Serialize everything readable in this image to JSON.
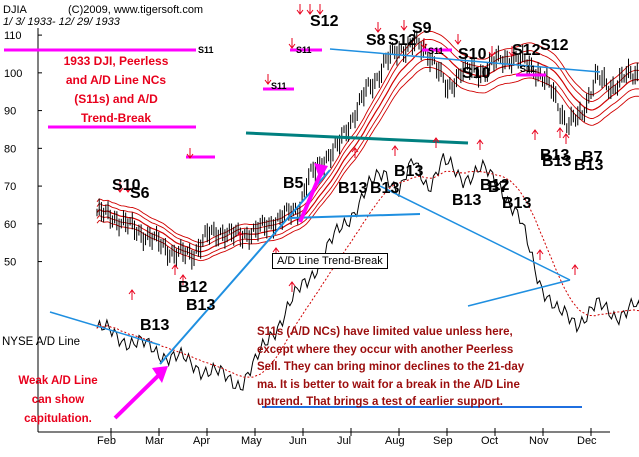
{
  "header": {
    "ticker": "DJIA",
    "copyright": "(C)2009, www.tigersoft.com",
    "date_range": "1/ 3/ 1933- 12/ 29/ 1933"
  },
  "title_lines": [
    "1933  DJI, Peerless",
    "and A/D Line NCs",
    "(S11s) and A/D",
    "Trend-Break"
  ],
  "weak_note_lines": [
    "Weak A/D Line",
    "can show",
    "capitulation."
  ],
  "ad_line_label": "NYSE A/D Line",
  "ad_trendbreak_box": "A/D Line Trend-Break",
  "note": {
    "line1": "S11s (A/D NCs) have limited value unless here,",
    "line2": "except where they occur with another Peerless",
    "line3": "Sell.  They can bring minor declines to the 21-day",
    "line4": "ma.  It is better to wait for a break in the A/D Line",
    "line5_pre": "uptrend.  That brings a test of ",
    "line5_ul": "earlier support."
  },
  "colors": {
    "price": "#000000",
    "bands": "#d00000",
    "trendline": "#1f8fe0",
    "support": "#008080",
    "highlight": "#ff00ff",
    "arrow": "#e8001c",
    "ad_ma": "#d00000"
  },
  "chart_data": {
    "type": "line",
    "title": "1933  DJI, Peerless and A/D Line NCs (S11s) and A/D Trend-Break",
    "ylim": [
      43,
      114
    ],
    "yticks": [
      50,
      60,
      70,
      80,
      90,
      100,
      110
    ],
    "months": [
      "Feb",
      "Mar",
      "Apr",
      "May",
      "Jun",
      "Jul",
      "Aug",
      "Sep",
      "Oct",
      "Nov",
      "Dec"
    ],
    "series": [
      {
        "name": "DJIA",
        "x_month": [
          0.0,
          0.3,
          0.6,
          1.0,
          1.3,
          1.6,
          2.0,
          2.3,
          2.6,
          2.8,
          3.0,
          3.3,
          3.6,
          3.9,
          4.2,
          4.4,
          4.6,
          4.8,
          5.0,
          5.2,
          5.4,
          5.6,
          5.8,
          6.0,
          6.3,
          6.6,
          7.0,
          7.3,
          7.6,
          8.0,
          8.3,
          8.6,
          8.9,
          9.2,
          9.5,
          9.8,
          10.1,
          10.4,
          10.7,
          11.0,
          11.3,
          11.6,
          11.9
        ],
        "values": [
          63,
          62,
          60,
          57,
          55,
          52,
          52,
          57,
          58,
          57,
          57,
          58,
          60,
          62,
          64,
          72,
          75,
          78,
          80,
          85,
          90,
          95,
          98,
          103,
          106,
          108,
          104,
          95,
          101,
          100,
          103,
          104,
          103,
          100,
          95,
          86,
          89,
          99,
          96,
          99,
          100,
          98,
          99
        ]
      },
      {
        "name": "NYSE A/D Line",
        "x_month": [
          0.0,
          0.4,
          0.8,
          1.2,
          1.6,
          2.0,
          2.4,
          2.7,
          3.0,
          3.3,
          3.6,
          3.9,
          4.2,
          4.6,
          5.0,
          5.3,
          5.6,
          6.0,
          6.3,
          6.6,
          6.9,
          7.2,
          7.6,
          8.0,
          8.4,
          8.8,
          9.2,
          9.6,
          10.0,
          10.4,
          10.8,
          11.2,
          11.5,
          11.8
        ],
        "values": [
          3,
          2,
          1,
          0,
          -1,
          -2,
          -3,
          -4,
          -4.5,
          -2,
          2,
          5,
          8,
          12,
          16,
          19,
          22,
          25,
          22,
          26,
          23,
          26,
          24,
          25,
          23,
          18,
          10,
          5,
          4,
          6,
          5,
          6,
          3,
          2
        ]
      }
    ],
    "signals": [
      "S10",
      "S6",
      "B12",
      "B13",
      "B13",
      "S11",
      "S11",
      "S11",
      "B5",
      "B13",
      "B13",
      "S12",
      "S8",
      "S12",
      "S9",
      "S11",
      "B13",
      "S10",
      "S10",
      "S12",
      "S12",
      "S11",
      "B13",
      "B12",
      "B7",
      "B13",
      "B13",
      "B13",
      "B7",
      "B13"
    ],
    "annotations": [
      "A/D Line Trend-Break",
      "Weak A/D Line can show capitulation."
    ]
  }
}
